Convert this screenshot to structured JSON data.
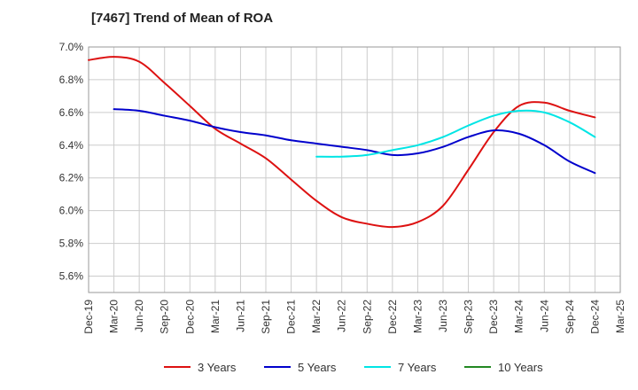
{
  "chart_data": {
    "type": "line",
    "title": "[7467]  Trend of Mean of ROA",
    "xlabel": "",
    "ylabel": "",
    "ylim": [
      5.5,
      7.0
    ],
    "yticks": [
      5.6,
      5.8,
      6.0,
      6.2,
      6.4,
      6.6,
      6.8,
      7.0
    ],
    "ytick_labels": [
      "5.6%",
      "5.8%",
      "6.0%",
      "6.2%",
      "6.4%",
      "6.6%",
      "6.8%",
      "7.0%"
    ],
    "categories": [
      "Dec-19",
      "Mar-20",
      "Jun-20",
      "Sep-20",
      "Dec-20",
      "Mar-21",
      "Jun-21",
      "Sep-21",
      "Dec-21",
      "Mar-22",
      "Jun-22",
      "Sep-22",
      "Dec-22",
      "Mar-23",
      "Jun-23",
      "Sep-23",
      "Dec-23",
      "Mar-24",
      "Jun-24",
      "Sep-24",
      "Dec-24",
      "Mar-25"
    ],
    "grid": true,
    "legend_position": "bottom",
    "series": [
      {
        "name": "3 Years",
        "color": "#dd1111",
        "values": [
          6.92,
          6.94,
          6.91,
          6.78,
          6.64,
          6.5,
          6.41,
          6.32,
          6.19,
          6.06,
          5.96,
          5.92,
          5.9,
          5.93,
          6.03,
          6.25,
          6.48,
          6.64,
          6.66,
          6.61,
          6.57,
          null
        ]
      },
      {
        "name": "5 Years",
        "color": "#0000cc",
        "values": [
          null,
          6.62,
          6.61,
          6.58,
          6.55,
          6.51,
          6.48,
          6.46,
          6.43,
          6.41,
          6.39,
          6.37,
          6.34,
          6.35,
          6.39,
          6.45,
          6.49,
          6.47,
          6.4,
          6.3,
          6.23,
          null
        ]
      },
      {
        "name": "7 Years",
        "color": "#00e5e5",
        "values": [
          null,
          null,
          null,
          null,
          null,
          null,
          null,
          null,
          null,
          6.33,
          6.33,
          6.34,
          6.37,
          6.4,
          6.45,
          6.52,
          6.58,
          6.61,
          6.6,
          6.54,
          6.45,
          null
        ]
      },
      {
        "name": "10 Years",
        "color": "#228822",
        "values": [
          null,
          null,
          null,
          null,
          null,
          null,
          null,
          null,
          null,
          null,
          null,
          null,
          null,
          null,
          null,
          null,
          null,
          null,
          null,
          null,
          null,
          null
        ]
      }
    ]
  }
}
